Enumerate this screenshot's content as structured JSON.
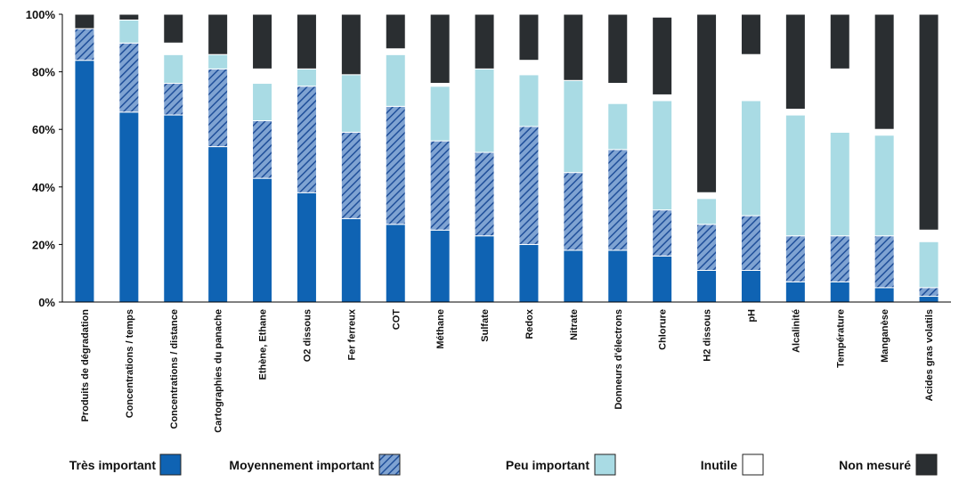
{
  "chart_data": {
    "type": "bar",
    "stacked": true,
    "percent_stacked": true,
    "yticks": [
      "0%",
      "20%",
      "40%",
      "60%",
      "80%",
      "100%"
    ],
    "ylim": [
      0,
      100
    ],
    "grid": false,
    "legend_position": "bottom",
    "categories": [
      "Produits de dégradation",
      "Concentrations / temps",
      "Concentrations / distance",
      "Cartographies du panache",
      "Ethène, Ethane",
      "O2 dissous",
      "Fer ferreux",
      "COT",
      "Méthane",
      "Sulfate",
      "Redox",
      "Nitrate",
      "Donneurs d'électrons",
      "Chlorure",
      "H2 dissous",
      "pH",
      "Alcalinité",
      "Température",
      "Manganèse",
      "Acides gras volatils"
    ],
    "series": [
      {
        "name": "Très important",
        "color": "#0f63b3",
        "pattern": "solid",
        "values": [
          84,
          66,
          65,
          54,
          43,
          38,
          29,
          27,
          25,
          23,
          20,
          18,
          18,
          16,
          11,
          11,
          7,
          7,
          5,
          2
        ]
      },
      {
        "name": "Moyennement important",
        "color": "#5a86c0",
        "pattern": "hatched",
        "values": [
          11,
          24,
          11,
          27,
          20,
          37,
          30,
          41,
          31,
          29,
          41,
          27,
          35,
          16,
          16,
          19,
          16,
          16,
          18,
          3
        ]
      },
      {
        "name": "Peu important",
        "color": "#a9dbe4",
        "pattern": "solid",
        "values": [
          0,
          8,
          10,
          5,
          13,
          6,
          20,
          18,
          19,
          29,
          18,
          32,
          16,
          38,
          9,
          40,
          42,
          36,
          35,
          16
        ]
      },
      {
        "name": "Inutile",
        "color": "#ffffff",
        "pattern": "solid",
        "values": [
          0,
          0,
          4,
          0,
          5,
          0,
          0,
          2,
          1,
          0,
          5,
          0,
          7,
          2,
          2,
          16,
          2,
          22,
          2,
          4
        ]
      },
      {
        "name": "Non mesuré",
        "color": "#2a2e31",
        "pattern": "solid",
        "values": [
          5,
          2,
          10,
          14,
          19,
          19,
          21,
          12,
          24,
          19,
          16,
          23,
          24,
          27,
          62,
          14,
          33,
          19,
          40,
          75
        ]
      }
    ]
  }
}
